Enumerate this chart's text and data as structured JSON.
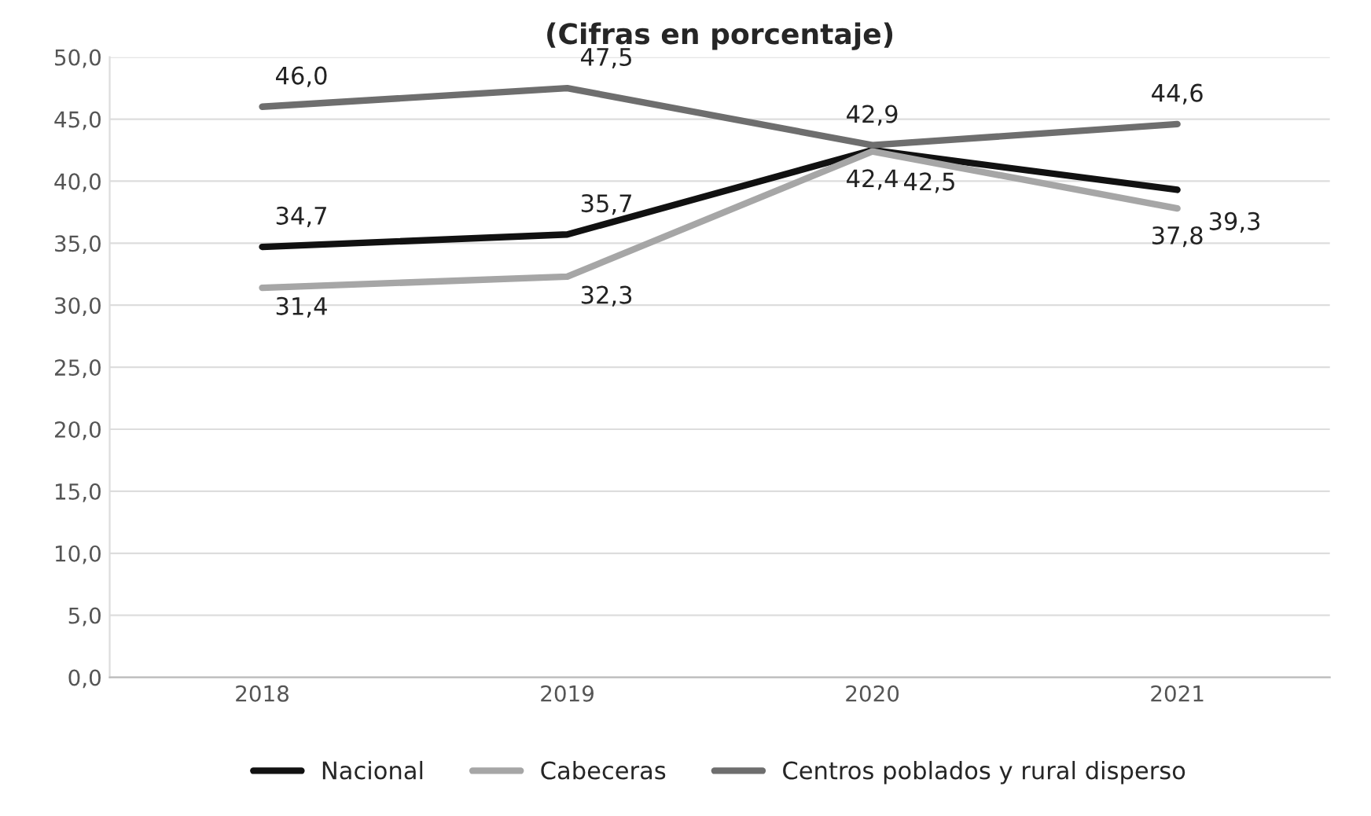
{
  "chart_data": {
    "type": "line",
    "title": "(Cifras en porcentaje)",
    "categories": [
      "2018",
      "2019",
      "2020",
      "2021"
    ],
    "series": [
      {
        "name": "Nacional",
        "color": "#111111",
        "values": [
          34.7,
          35.7,
          42.5,
          39.3
        ],
        "value_labels": [
          "34,7",
          "35,7",
          "42,5",
          "39,3"
        ]
      },
      {
        "name": "Cabeceras",
        "color": "#a6a6a6",
        "values": [
          31.4,
          32.3,
          42.4,
          37.8
        ],
        "value_labels": [
          "31,4",
          "32,3",
          "42,4",
          "37,8"
        ]
      },
      {
        "name": "Centros poblados y rural disperso",
        "color": "#6e6e6e",
        "values": [
          46.0,
          47.5,
          42.9,
          44.6
        ],
        "value_labels": [
          "46,0",
          "47,5",
          "42,9",
          "44,6"
        ]
      }
    ],
    "ylim": [
      0,
      50
    ],
    "yticks": [
      {
        "value": 0,
        "label": "0,0"
      },
      {
        "value": 5,
        "label": "5,0"
      },
      {
        "value": 10,
        "label": "10,0"
      },
      {
        "value": 15,
        "label": "15,0"
      },
      {
        "value": 20,
        "label": "20,0"
      },
      {
        "value": 25,
        "label": "25,0"
      },
      {
        "value": 30,
        "label": "30,0"
      },
      {
        "value": 35,
        "label": "35,0"
      },
      {
        "value": 40,
        "label": "40,0"
      },
      {
        "value": 45,
        "label": "45,0"
      },
      {
        "value": 50,
        "label": "50,0"
      }
    ],
    "grid": "y",
    "legend": "bottom",
    "marker": "none",
    "line_style": "solid"
  }
}
